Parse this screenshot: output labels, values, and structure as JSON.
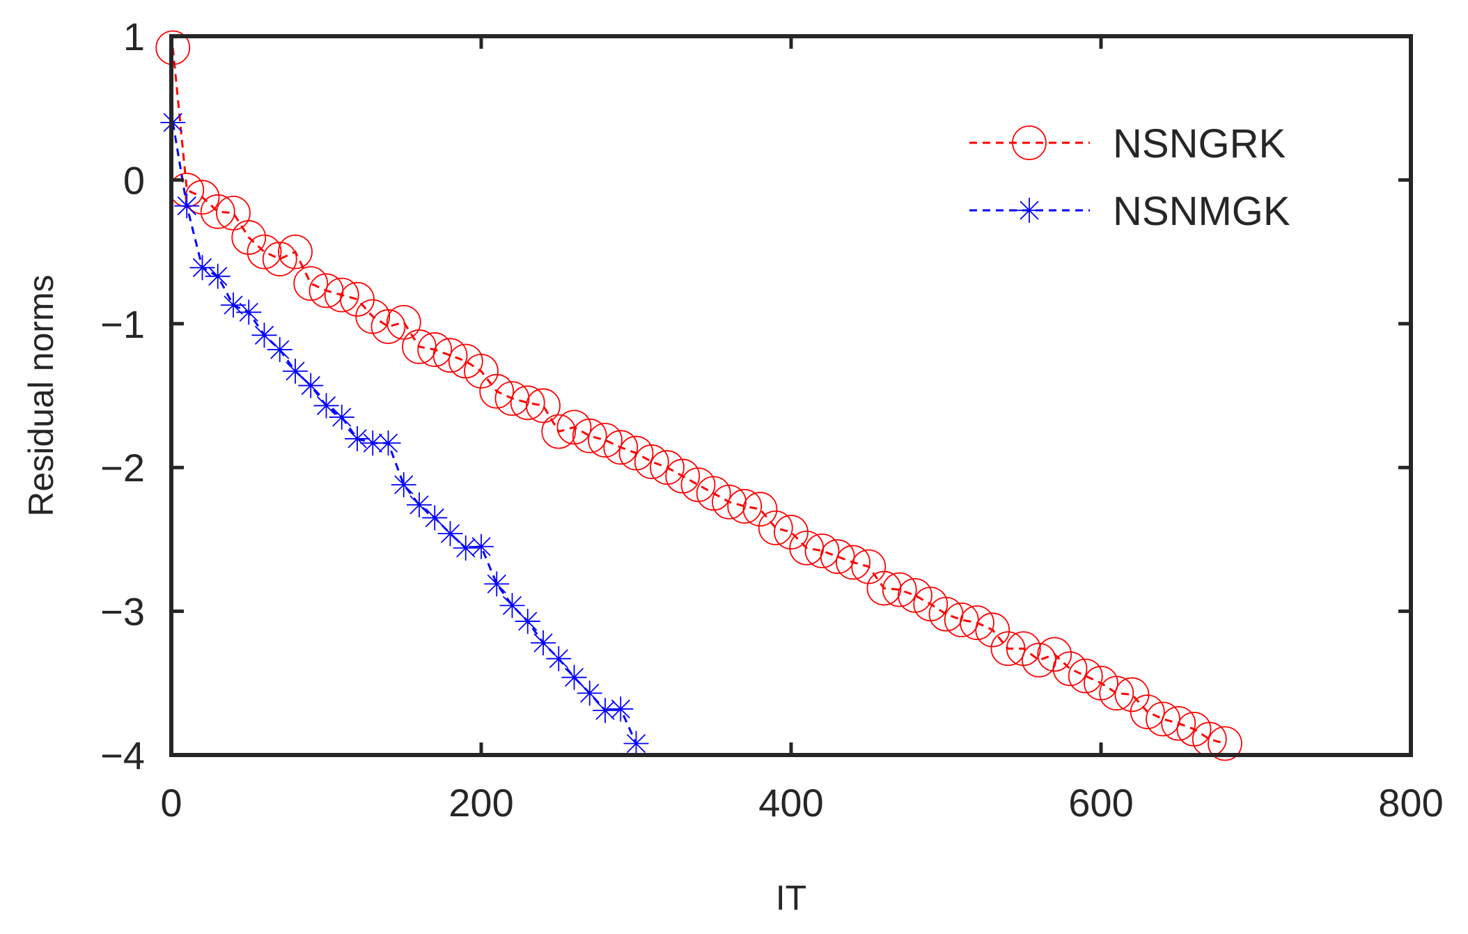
{
  "chart_data": {
    "type": "line",
    "title": "",
    "xlabel": "IT",
    "ylabel": "Residual norms",
    "xlim": [
      0,
      800
    ],
    "ylim": [
      -4,
      1
    ],
    "xticks": [
      0,
      200,
      400,
      600,
      800
    ],
    "xtick_labels": [
      "0",
      "200",
      "400",
      "600",
      "800"
    ],
    "yticks": [
      1,
      0,
      -1,
      -2,
      -3,
      -4
    ],
    "ytick_labels": [
      "1",
      "0",
      "−1",
      "−2",
      "−3",
      "−4"
    ],
    "grid": false,
    "legend_position": "top-right",
    "series": [
      {
        "name": "NSNGRK",
        "color": "#ff0000",
        "marker": "circle",
        "line_style": "dashed",
        "x": [
          1,
          10,
          20,
          30,
          40,
          50,
          60,
          70,
          80,
          90,
          100,
          110,
          120,
          130,
          140,
          150,
          160,
          170,
          180,
          190,
          200,
          210,
          220,
          230,
          240,
          250,
          260,
          270,
          280,
          290,
          300,
          310,
          320,
          330,
          340,
          350,
          360,
          370,
          380,
          390,
          400,
          410,
          420,
          430,
          440,
          450,
          460,
          470,
          480,
          490,
          500,
          510,
          520,
          530,
          540,
          550,
          560,
          570,
          580,
          590,
          600,
          610,
          620,
          630,
          640,
          650,
          660,
          670,
          680
        ],
        "y": [
          0.92,
          -0.07,
          -0.12,
          -0.22,
          -0.23,
          -0.4,
          -0.5,
          -0.55,
          -0.5,
          -0.72,
          -0.77,
          -0.8,
          -0.83,
          -0.95,
          -1.02,
          -0.99,
          -1.16,
          -1.18,
          -1.22,
          -1.26,
          -1.33,
          -1.47,
          -1.52,
          -1.55,
          -1.57,
          -1.75,
          -1.72,
          -1.78,
          -1.81,
          -1.86,
          -1.9,
          -1.96,
          -2.0,
          -2.06,
          -2.12,
          -2.18,
          -2.24,
          -2.27,
          -2.29,
          -2.42,
          -2.45,
          -2.56,
          -2.58,
          -2.62,
          -2.66,
          -2.69,
          -2.84,
          -2.85,
          -2.89,
          -2.95,
          -3.02,
          -3.06,
          -3.08,
          -3.13,
          -3.26,
          -3.26,
          -3.34,
          -3.3,
          -3.4,
          -3.45,
          -3.5,
          -3.57,
          -3.58,
          -3.7,
          -3.75,
          -3.78,
          -3.82,
          -3.89,
          -3.92
        ]
      },
      {
        "name": "NSNMGK",
        "color": "#0000ff",
        "marker": "asterisk",
        "line_style": "dashed",
        "x": [
          1,
          10,
          20,
          30,
          40,
          50,
          60,
          70,
          80,
          90,
          100,
          110,
          120,
          130,
          140,
          150,
          160,
          170,
          180,
          190,
          200,
          210,
          220,
          230,
          240,
          250,
          260,
          270,
          280,
          290,
          300
        ],
        "y": [
          0.4,
          -0.18,
          -0.61,
          -0.67,
          -0.87,
          -0.92,
          -1.08,
          -1.18,
          -1.33,
          -1.43,
          -1.57,
          -1.65,
          -1.8,
          -1.83,
          -1.83,
          -2.12,
          -2.26,
          -2.35,
          -2.46,
          -2.56,
          -2.55,
          -2.81,
          -2.96,
          -3.07,
          -3.22,
          -3.33,
          -3.46,
          -3.57,
          -3.69,
          -3.68,
          -3.92
        ]
      }
    ]
  }
}
